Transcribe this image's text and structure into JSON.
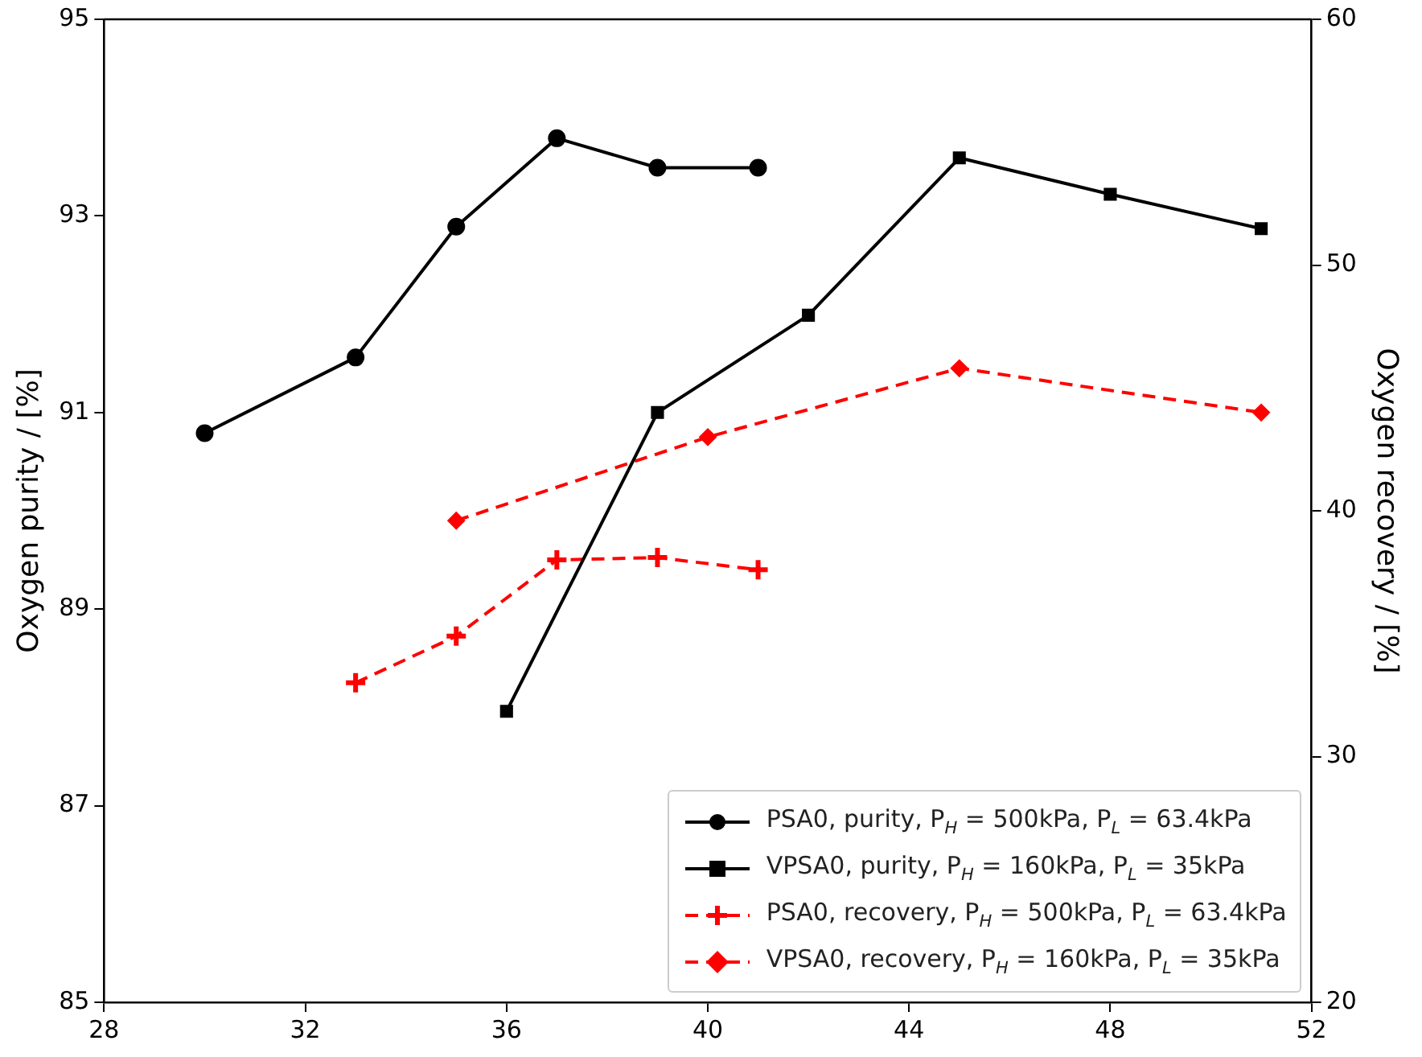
{
  "chart_data": {
    "type": "line",
    "xlabel": null,
    "ylabel": "Oxygen purity / [%]",
    "y2label": "Oxygen recovery / [%]",
    "xlim": [
      28,
      52
    ],
    "xticks": [
      28,
      32,
      36,
      40,
      44,
      48,
      52
    ],
    "ylim": [
      85,
      95
    ],
    "yticks": [
      85,
      87,
      89,
      91,
      93,
      95
    ],
    "y2lim": [
      20,
      60
    ],
    "y2ticks": [
      20,
      30,
      40,
      50,
      60
    ],
    "grid": false,
    "legend": "bottom right",
    "series": [
      {
        "name": "PSA0, purity, P$_{H}$ = 500kPa, P$_{L}$ = 63.4kPa",
        "color": "#000000",
        "marker": "circle",
        "line_style": "solid",
        "x": [
          30,
          33,
          35,
          37,
          39,
          41
        ],
        "values": [
          90.79,
          91.56,
          92.89,
          93.79,
          93.49,
          93.49
        ]
      },
      {
        "name": "VPSA0, purity, P$_{H}$ = 160kPa, P$_{L}$ = 35kPa",
        "color": "#000000",
        "marker": "square",
        "line_style": "solid",
        "x": [
          36,
          39,
          42,
          45,
          48,
          51
        ],
        "values": [
          87.96,
          91.0,
          91.99,
          93.59,
          93.22,
          92.87
        ]
      },
      {
        "name": "PSA0, recovery, P$_{H}$ = 500kPa, P$_{L}$ = 63.4kPa",
        "color": "#ff0000",
        "marker": "cross",
        "line_style": "dashed",
        "axis": "y2",
        "x": [
          33,
          35,
          37,
          39,
          41
        ],
        "values": [
          33.0,
          34.9,
          38.0,
          38.1,
          37.6
        ]
      },
      {
        "name": "VPSA0, recovery, P$_{H}$ = 160kPa, P$_{L}$ = 35kPa",
        "color": "#ff0000",
        "marker": "diamond",
        "line_style": "dashed",
        "axis": "y2",
        "x": [
          35,
          40,
          45,
          51
        ],
        "values": [
          39.6,
          43.0,
          45.8,
          44.0
        ]
      }
    ]
  }
}
